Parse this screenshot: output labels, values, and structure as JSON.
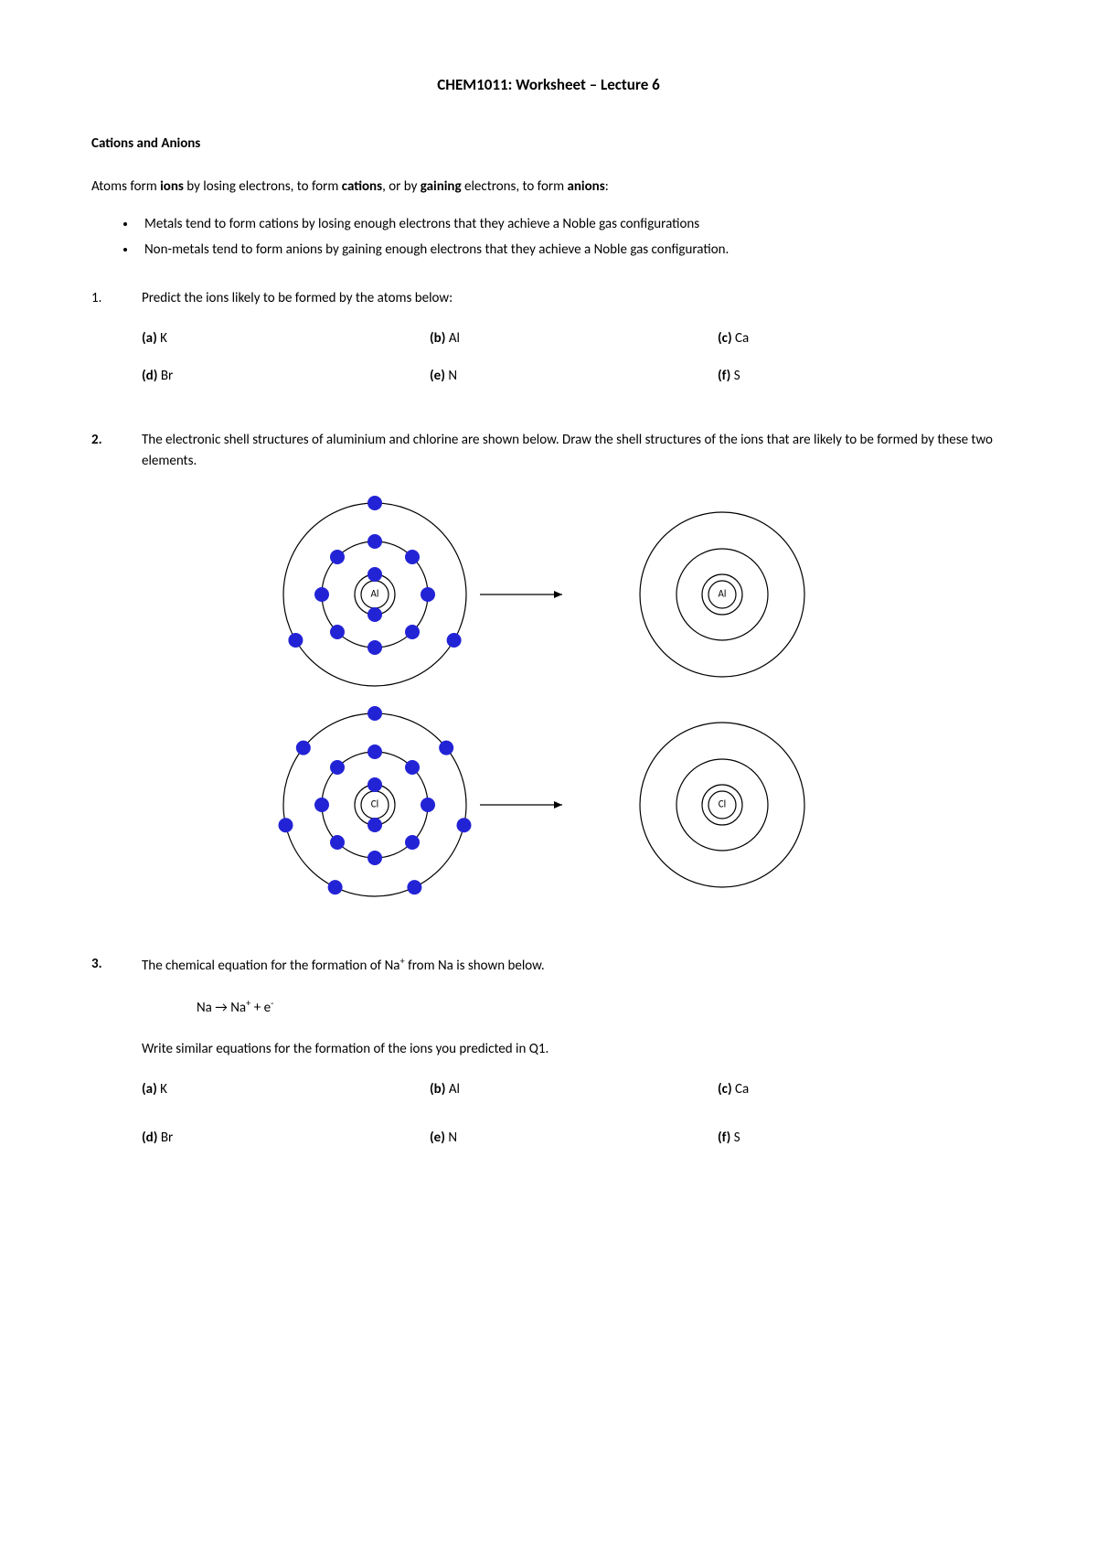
{
  "title": "CHEM1011: Worksheet – Lecture 6",
  "section_heading": "Cations and Anions",
  "intro_pre": "Atoms form ",
  "intro_b1": "ions",
  "intro_mid1": " by losing electrons, to form ",
  "intro_b2": "cations",
  "intro_mid2": ", or by ",
  "intro_b3": "gaining",
  "intro_mid3": " electrons, to form ",
  "intro_b4": "anions",
  "intro_end": ":",
  "bullet1": "Metals tend to form cations by losing enough electrons that they achieve a Noble gas configurations",
  "bullet2": "Non-metals tend to form anions by gaining enough electrons that they achieve a Noble gas configuration.",
  "q1": {
    "num": "1.",
    "text": "Predict the ions likely to be formed by the atoms below:",
    "opts": [
      {
        "l": "(a)",
        "v": "K"
      },
      {
        "l": "(b)",
        "v": "Al"
      },
      {
        "l": "(c)",
        "v": "Ca"
      },
      {
        "l": "(d)",
        "v": "Br"
      },
      {
        "l": "(e)",
        "v": "N"
      },
      {
        "l": "(f)",
        "v": "S"
      }
    ]
  },
  "q2": {
    "num": "2.",
    "text": "The electronic shell structures of aluminium and chlorine are shown below. Draw the shell structures of the ions that are likely to be formed by these two elements."
  },
  "diagram": {
    "electron_color": "#2323d6",
    "circle_stroke": "#000000",
    "label_font": "11",
    "atoms": [
      {
        "label": "Al",
        "shells": [
          2,
          8,
          3
        ],
        "shell_radii": [
          22,
          58,
          100
        ],
        "nucleus_r": 15
      },
      {
        "label": "Cl",
        "shells": [
          2,
          8,
          7
        ],
        "shell_radii": [
          22,
          58,
          100
        ],
        "nucleus_r": 15
      }
    ],
    "empty_shell_radii": [
      22,
      50,
      90
    ],
    "arrow_len": 90
  },
  "q3": {
    "num": "3.",
    "text_pre": "The chemical equation for the formation of Na",
    "text_sup": "+",
    "text_post": " from Na is shown below.",
    "eqn_a": "Na ",
    "eqn_arrow": "→",
    "eqn_b": " Na",
    "eqn_sup1": "+",
    "eqn_c": " + e",
    "eqn_sup2": "-",
    "text2": "Write similar equations for the formation of the ions you predicted in Q1.",
    "opts": [
      {
        "l": "(a)",
        "v": "K"
      },
      {
        "l": "(b)",
        "v": "Al"
      },
      {
        "l": "(c)",
        "v": "Ca"
      },
      {
        "l": "(d)",
        "v": "Br"
      },
      {
        "l": "(e)",
        "v": "N"
      },
      {
        "l": "(f)",
        "v": "S"
      }
    ]
  }
}
